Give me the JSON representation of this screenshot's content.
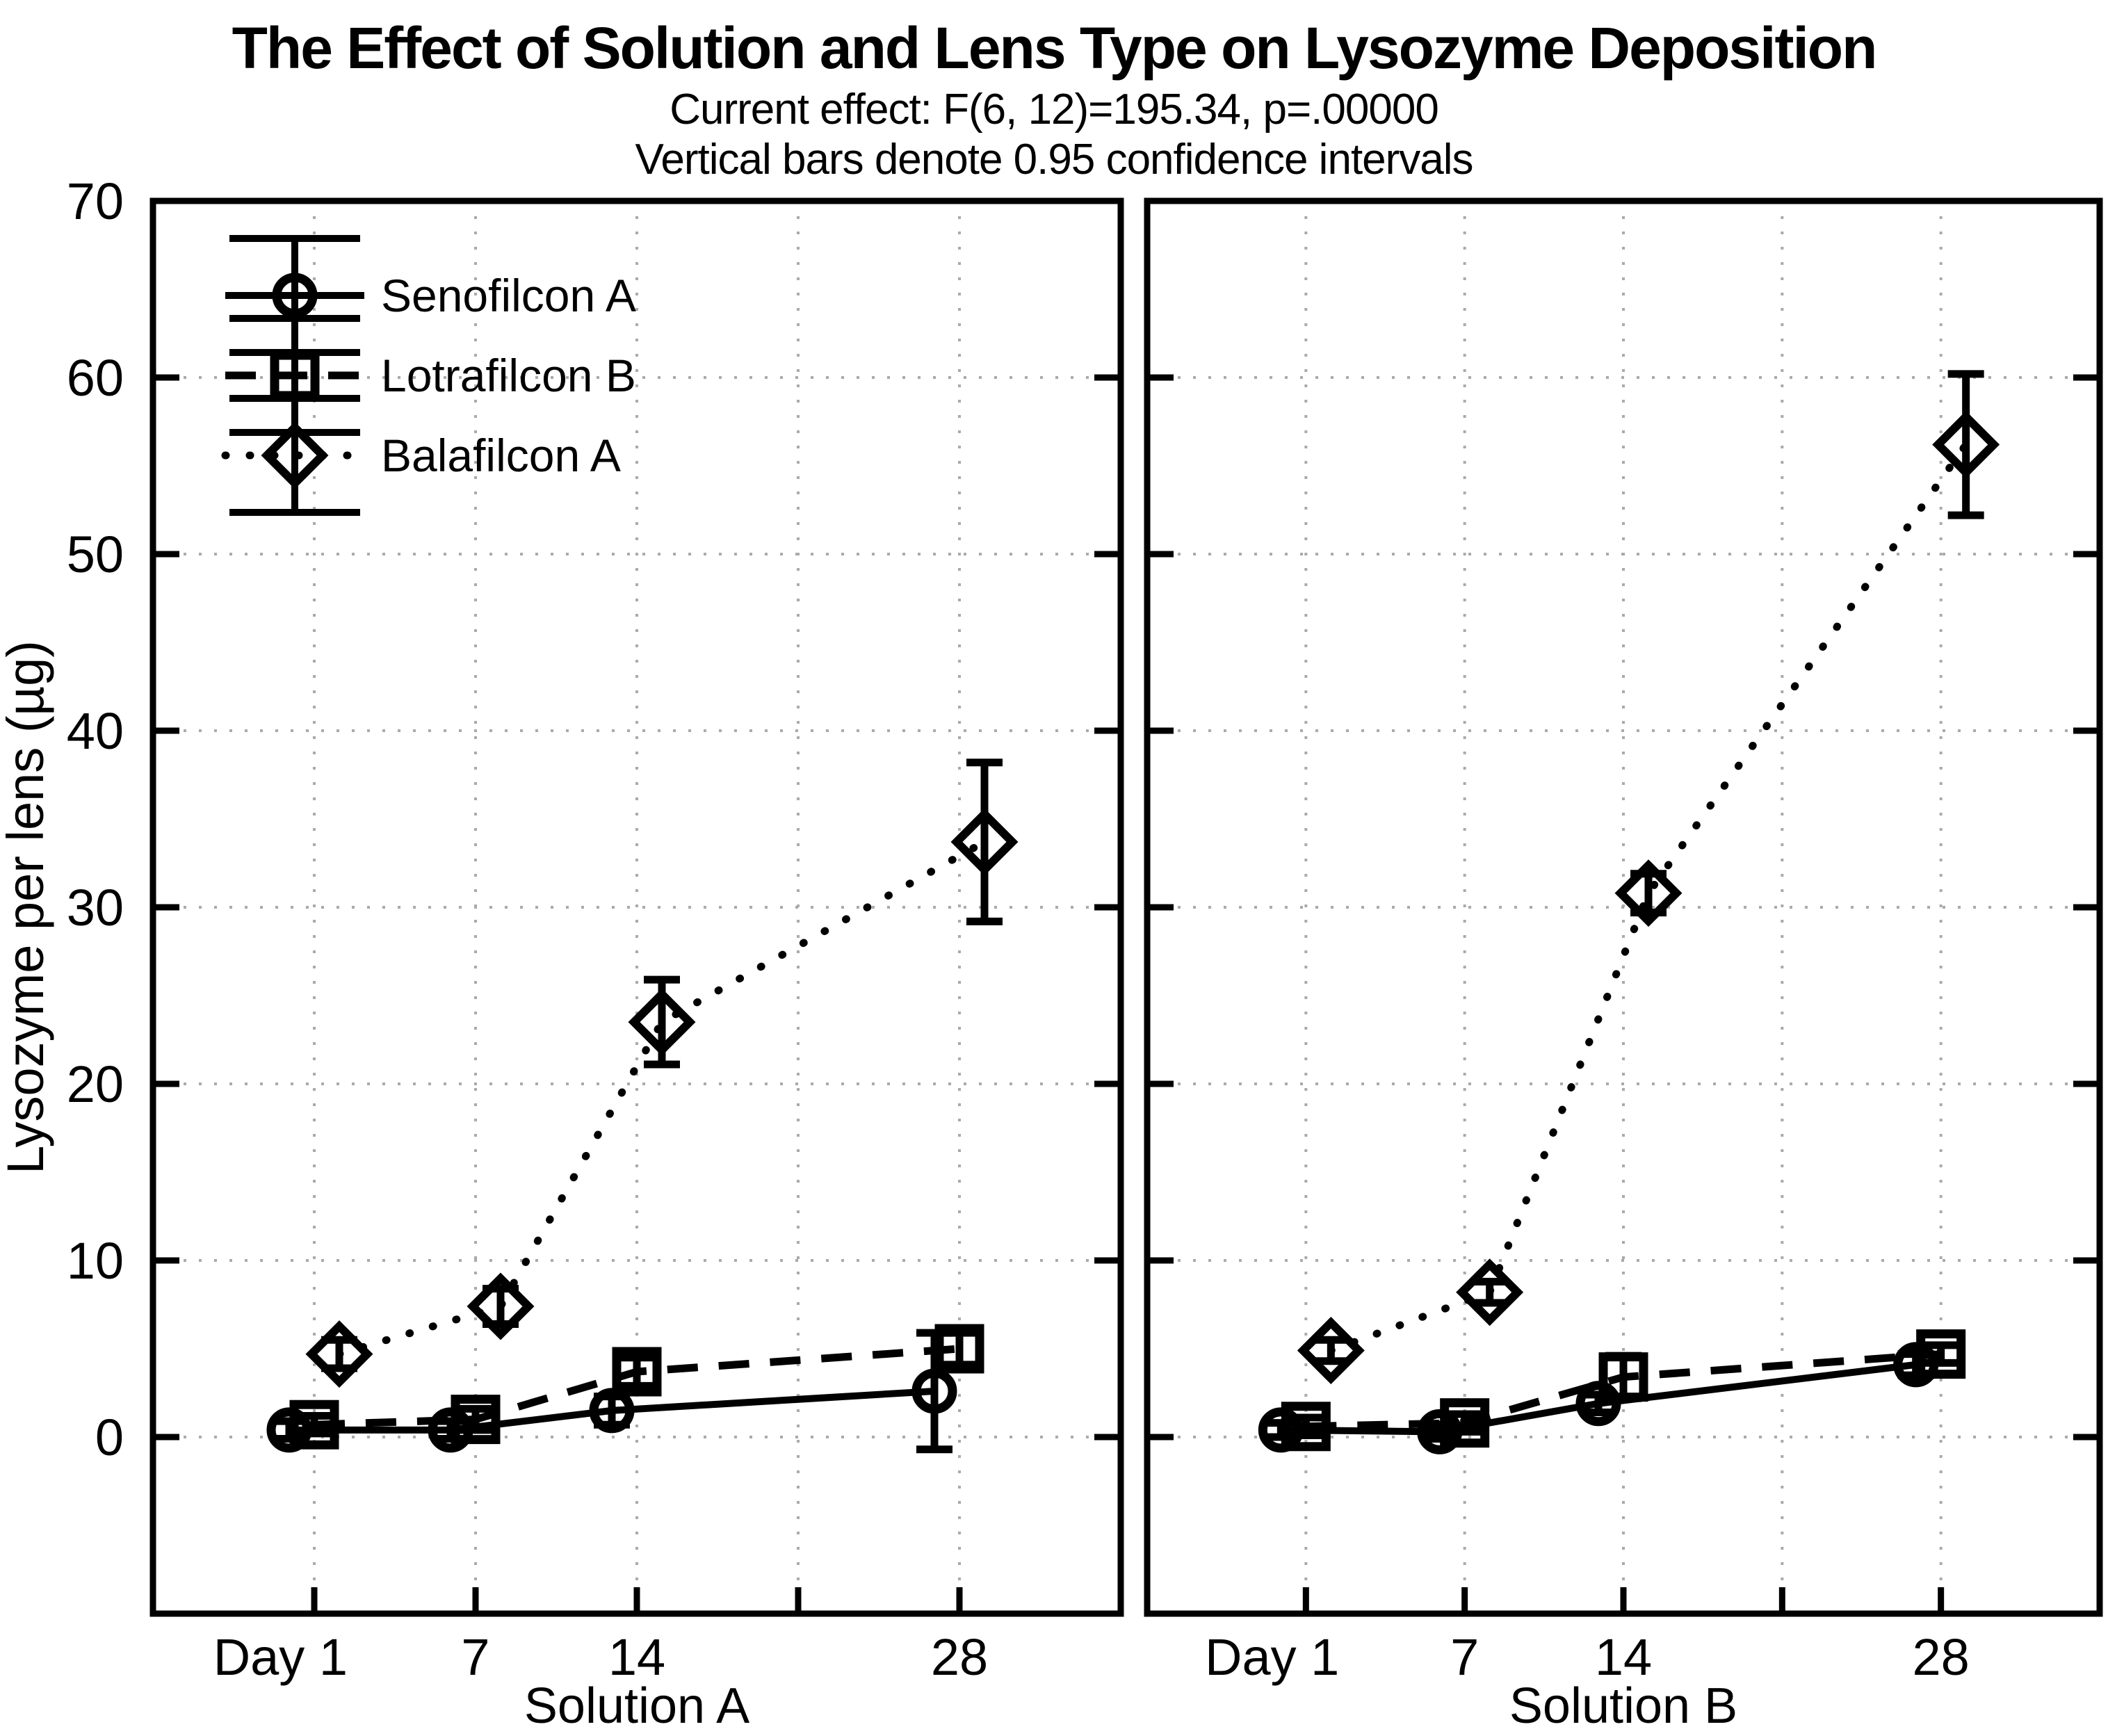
{
  "header": {
    "title": "The Effect of Solution and Lens Type on Lysozyme Deposition",
    "subtitle1": "Current effect: F(6, 12)=195.34, p=.00000",
    "subtitle2": "Vertical bars denote 0.95 confidence intervals"
  },
  "chart_data": {
    "type": "line",
    "title": "The Effect of Solution and Lens Type on Lysozyme Deposition",
    "subtitle": "Current effect: F(6, 12)=195.34, p=.00000",
    "note": "Vertical bars denote 0.95 confidence intervals",
    "ylabel": "Lysozyme per lens (µg)",
    "ylim": [
      -10,
      70
    ],
    "yticks": [
      0,
      10,
      20,
      30,
      40,
      50,
      60,
      70
    ],
    "x_days": [
      1,
      7,
      14,
      28
    ],
    "x_slots": [
      0,
      1,
      2,
      4
    ],
    "x_slot_count": 5,
    "x_tick_labels": [
      "Day 1",
      "7",
      "14",
      "",
      "28"
    ],
    "grid": "dotted gray horizontal and vertical at every tick",
    "legend_position": "upper-left inside first panel",
    "error_bars": "0.95 confidence intervals",
    "panels": [
      {
        "xlabel": "Solution A",
        "series": [
          {
            "name": "Senofilcon A",
            "marker": "circle",
            "line": "solid",
            "values": [
              0.4,
              0.4,
              1.5,
              2.6
            ],
            "ci": [
              0.5,
              0.5,
              0.8,
              3.3
            ]
          },
          {
            "name": "Lotrafilcon B",
            "marker": "square",
            "line": "dashed",
            "values": [
              0.7,
              1.0,
              3.7,
              5.0
            ],
            "ci": [
              0.5,
              0.6,
              0.8,
              0.9
            ]
          },
          {
            "name": "Balafilcon A",
            "marker": "diamond",
            "line": "dotted",
            "values": [
              4.7,
              7.4,
              23.5,
              33.7
            ],
            "ci": [
              0.8,
              1.0,
              2.4,
              4.5
            ]
          }
        ]
      },
      {
        "xlabel": "Solution B",
        "series": [
          {
            "name": "Senofilcon A",
            "marker": "circle",
            "line": "solid",
            "values": [
              0.4,
              0.3,
              1.9,
              4.1
            ],
            "ci": [
              0.4,
              0.4,
              0.5,
              0.6
            ]
          },
          {
            "name": "Lotrafilcon B",
            "marker": "square",
            "line": "dashed",
            "values": [
              0.6,
              0.8,
              3.4,
              4.7
            ],
            "ci": [
              0.5,
              0.5,
              1.2,
              0.5
            ]
          },
          {
            "name": "Balafilcon A",
            "marker": "diamond",
            "line": "dotted",
            "values": [
              4.9,
              8.2,
              30.8,
              56.2
            ],
            "ci": [
              0.6,
              0.6,
              1.1,
              4.0
            ]
          }
        ]
      }
    ],
    "colors": {
      "foreground": "#000000",
      "grid": "#aaaaaa",
      "background": "#ffffff"
    }
  },
  "legend": {
    "items": [
      "Senofilcon A",
      "Lotrafilcon B",
      "Balafilcon A"
    ]
  }
}
